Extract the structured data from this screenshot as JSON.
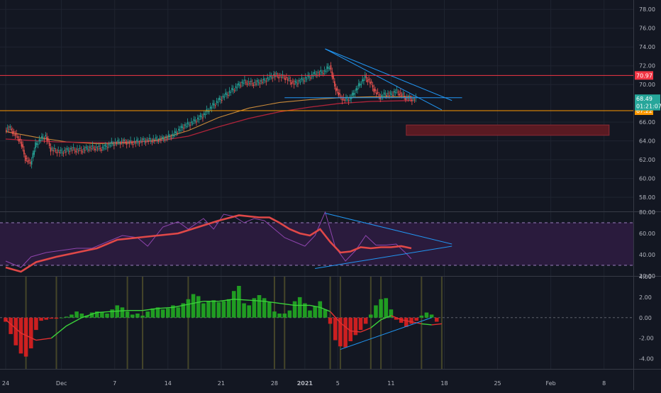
{
  "theme": {
    "background": "#131722",
    "grid": "#1f2430",
    "axis_text": "#b2b5be",
    "up": "#26a69a",
    "down": "#ef5350",
    "trendline": "#2196f3",
    "resistance": "#f23645",
    "support": "#ff9800",
    "rsi_line": "#e04848",
    "rsi_raw": "#8e44ad",
    "rsi_band": "#2a1b3d",
    "macd_up": "#22ab22",
    "macd_down": "#e02020",
    "zone": "#5a1a22"
  },
  "chart_data": [
    {
      "type": "line",
      "panel": "price",
      "ylim": [
        56.5,
        79
      ],
      "y_ticks": [
        "78.00",
        "76.00",
        "74.00",
        "72.00",
        "70.00",
        "66.00",
        "64.00",
        "62.00",
        "60.00",
        "58.00"
      ],
      "horizontal_levels": [
        {
          "value": 70.97,
          "label": "70.97",
          "color": "#f23645"
        },
        {
          "value": 67.22,
          "label": "67.22",
          "color": "#ff9800"
        }
      ],
      "price_badges": [
        {
          "value": 68.49,
          "label": "68.49",
          "color": "#26a69a"
        },
        {
          "value": 67.7,
          "label": "01:21:07",
          "color": "#26a69a"
        }
      ],
      "zone": {
        "from_x": 79,
        "to_x": 119,
        "y_low": 64.6,
        "y_high": 65.7
      },
      "series": [
        {
          "values": [
            [
              0,
              65.3
            ],
            [
              2,
              64.0
            ],
            [
              3,
              62.1
            ],
            [
              4,
              61.6
            ],
            [
              5,
              63.6
            ],
            [
              6,
              64.2
            ],
            [
              7,
              64.5
            ],
            [
              8,
              63.1
            ],
            [
              10,
              62.8
            ],
            [
              12,
              63.1
            ],
            [
              14,
              63.0
            ],
            [
              16,
              63.3
            ],
            [
              18,
              63.2
            ],
            [
              20,
              63.7
            ],
            [
              22,
              63.9
            ],
            [
              24,
              63.8
            ],
            [
              26,
              64.0
            ],
            [
              28,
              64.1
            ],
            [
              30,
              64.2
            ],
            [
              32,
              64.6
            ],
            [
              34,
              65.5
            ],
            [
              36,
              66.0
            ],
            [
              38,
              66.7
            ],
            [
              40,
              67.8
            ],
            [
              42,
              68.7
            ],
            [
              44,
              69.5
            ],
            [
              46,
              70.3
            ],
            [
              48,
              70.1
            ],
            [
              50,
              70.4
            ],
            [
              52,
              71.0
            ],
            [
              54,
              70.8
            ],
            [
              56,
              70.1
            ],
            [
              58,
              70.6
            ],
            [
              60,
              71.1
            ],
            [
              62,
              71.4
            ],
            [
              63,
              72.0
            ],
            [
              64,
              69.8
            ],
            [
              65,
              68.7
            ],
            [
              66,
              68.4
            ],
            [
              67,
              68.5
            ],
            [
              68,
              69.3
            ],
            [
              69,
              70.1
            ],
            [
              70,
              70.8
            ],
            [
              71,
              70.2
            ],
            [
              72,
              69.2
            ],
            [
              73,
              68.7
            ],
            [
              74,
              69.0
            ],
            [
              75,
              68.9
            ],
            [
              76,
              69.3
            ],
            [
              77,
              69.0
            ],
            [
              78,
              68.6
            ],
            [
              79,
              68.5
            ],
            [
              80,
              68.4
            ]
          ]
        },
        {
          "values": [
            [
              0,
              65.0
            ],
            [
              6,
              64.4
            ],
            [
              12,
              63.9
            ],
            [
              18,
              63.7
            ],
            [
              24,
              63.8
            ],
            [
              30,
              64.1
            ],
            [
              36,
              65.1
            ],
            [
              42,
              66.5
            ],
            [
              48,
              67.5
            ],
            [
              54,
              68.1
            ],
            [
              60,
              68.4
            ],
            [
              66,
              68.6
            ],
            [
              72,
              68.7
            ],
            [
              80,
              68.7
            ]
          ]
        },
        {
          "values": [
            [
              0,
              64.2
            ],
            [
              10,
              63.9
            ],
            [
              20,
              63.8
            ],
            [
              30,
              64.0
            ],
            [
              36,
              64.5
            ],
            [
              42,
              65.5
            ],
            [
              48,
              66.4
            ],
            [
              54,
              67.1
            ],
            [
              60,
              67.6
            ],
            [
              66,
              68.0
            ],
            [
              72,
              68.2
            ],
            [
              80,
              68.3
            ]
          ]
        }
      ],
      "trendlines": [
        {
          "from": [
            63,
            73.8
          ],
          "to": [
            88,
            68.3
          ]
        },
        {
          "from": [
            63,
            73.8
          ],
          "to": [
            86,
            67.3
          ]
        },
        {
          "from": [
            55,
            68.6
          ],
          "to": [
            90,
            68.6
          ]
        }
      ]
    },
    {
      "type": "line",
      "panel": "rsi",
      "ylim": [
        20,
        80
      ],
      "y_ticks": [
        "80.00",
        "60.00",
        "40.00",
        "20.00"
      ],
      "band": [
        30,
        70
      ],
      "series": [
        {
          "values": [
            [
              0,
              28
            ],
            [
              3,
              24
            ],
            [
              6,
              33
            ],
            [
              10,
              38
            ],
            [
              14,
              42
            ],
            [
              18,
              46
            ],
            [
              22,
              54
            ],
            [
              26,
              56
            ],
            [
              30,
              58
            ],
            [
              34,
              60
            ],
            [
              38,
              66
            ],
            [
              42,
              72
            ],
            [
              46,
              77
            ],
            [
              48,
              76
            ],
            [
              50,
              75
            ],
            [
              52,
              75
            ],
            [
              54,
              70
            ],
            [
              56,
              64
            ],
            [
              58,
              60
            ],
            [
              60,
              58
            ],
            [
              62,
              64
            ],
            [
              64,
              52
            ],
            [
              66,
              42
            ],
            [
              68,
              43
            ],
            [
              70,
              47
            ],
            [
              72,
              46
            ],
            [
              74,
              47
            ],
            [
              76,
              47
            ],
            [
              78,
              48
            ],
            [
              80,
              46
            ]
          ]
        },
        {
          "values": [
            [
              0,
              34
            ],
            [
              3,
              28
            ],
            [
              5,
              38
            ],
            [
              8,
              42
            ],
            [
              11,
              44
            ],
            [
              14,
              46
            ],
            [
              17,
              46
            ],
            [
              20,
              52
            ],
            [
              23,
              58
            ],
            [
              26,
              56
            ],
            [
              28,
              48
            ],
            [
              31,
              66
            ],
            [
              34,
              71
            ],
            [
              36,
              64
            ],
            [
              39,
              74
            ],
            [
              41,
              64
            ],
            [
              43,
              78
            ],
            [
              45,
              76
            ],
            [
              47,
              70
            ],
            [
              49,
              74
            ],
            [
              51,
              72
            ],
            [
              53,
              64
            ],
            [
              55,
              56
            ],
            [
              57,
              52
            ],
            [
              59,
              48
            ],
            [
              61,
              58
            ],
            [
              63,
              80
            ],
            [
              65,
              47
            ],
            [
              67,
              34
            ],
            [
              69,
              44
            ],
            [
              71,
              58
            ],
            [
              73,
              49
            ],
            [
              75,
              49
            ],
            [
              77,
              50
            ],
            [
              79,
              41
            ],
            [
              80,
              36
            ]
          ]
        }
      ],
      "trendlines": [
        {
          "from": [
            63,
            79
          ],
          "to": [
            88,
            50
          ]
        },
        {
          "from": [
            61,
            27
          ],
          "to": [
            88,
            48
          ]
        }
      ]
    },
    {
      "type": "bar",
      "panel": "macd",
      "ylim": [
        -5,
        4
      ],
      "y_ticks": [
        "4.00",
        "2.00",
        "0.00",
        "-2.00",
        "-4.00"
      ],
      "histogram": [
        -0.4,
        -1.6,
        -2.7,
        -3.5,
        -3.8,
        -3.0,
        -1.2,
        -0.3,
        -0.2,
        -0.1,
        -0.1,
        0.0,
        0.1,
        0.3,
        0.6,
        0.4,
        0.2,
        0.5,
        0.6,
        0.5,
        0.4,
        0.8,
        1.2,
        1.0,
        0.6,
        0.3,
        0.4,
        0.2,
        0.6,
        0.9,
        1.0,
        0.8,
        0.9,
        1.2,
        1.0,
        1.4,
        1.8,
        2.3,
        2.1,
        1.4,
        1.6,
        1.7,
        1.5,
        1.6,
        1.8,
        2.6,
        3.1,
        1.4,
        1.2,
        1.9,
        2.2,
        1.9,
        1.5,
        0.6,
        0.4,
        0.4,
        0.7,
        1.6,
        2.0,
        1.4,
        0.7,
        1.1,
        1.6,
        0.8,
        -0.6,
        -2.2,
        -2.8,
        -2.9,
        -2.3,
        -1.7,
        -1.2,
        -0.6,
        0.3,
        1.2,
        1.8,
        1.9,
        0.8,
        -0.2,
        -0.5,
        -0.9,
        -0.6,
        -0.3,
        0.2,
        0.5,
        0.3,
        -0.4
      ],
      "signal": [
        [
          0,
          -0.2
        ],
        [
          3,
          -1.5
        ],
        [
          6,
          -2.2
        ],
        [
          9,
          -2.0
        ],
        [
          12,
          -0.8
        ],
        [
          15,
          0.0
        ],
        [
          18,
          0.5
        ],
        [
          21,
          0.6
        ],
        [
          24,
          0.7
        ],
        [
          27,
          0.7
        ],
        [
          30,
          0.9
        ],
        [
          33,
          1.0
        ],
        [
          36,
          1.3
        ],
        [
          39,
          1.6
        ],
        [
          42,
          1.6
        ],
        [
          45,
          1.8
        ],
        [
          48,
          1.7
        ],
        [
          51,
          1.6
        ],
        [
          54,
          1.4
        ],
        [
          57,
          1.2
        ],
        [
          60,
          1.2
        ],
        [
          62,
          1.0
        ],
        [
          64,
          0.6
        ],
        [
          66,
          -0.5
        ],
        [
          68,
          -1.3
        ],
        [
          70,
          -1.4
        ],
        [
          72,
          -1.0
        ],
        [
          74,
          -0.2
        ],
        [
          76,
          0.2
        ],
        [
          78,
          -0.2
        ],
        [
          80,
          -0.4
        ],
        [
          82,
          -0.6
        ],
        [
          84,
          -0.7
        ],
        [
          86,
          -0.6
        ]
      ],
      "trendlines": [
        {
          "from": [
            66,
            -3.1
          ],
          "to": [
            84,
            0.0
          ]
        }
      ],
      "markers": [
        4,
        10,
        24,
        27,
        36,
        53,
        55,
        64,
        66,
        72,
        74,
        82,
        86
      ]
    }
  ],
  "x_axis": {
    "ticks": [
      {
        "x": 0,
        "label": "24"
      },
      {
        "x": 11,
        "label": "Dec"
      },
      {
        "x": 21.5,
        "label": "7"
      },
      {
        "x": 32,
        "label": "14"
      },
      {
        "x": 42.5,
        "label": "21"
      },
      {
        "x": 53,
        "label": "28"
      },
      {
        "x": 59,
        "label": "2021"
      },
      {
        "x": 65.5,
        "label": "5"
      },
      {
        "x": 76,
        "label": "11"
      },
      {
        "x": 86.5,
        "label": "18"
      },
      {
        "x": 97,
        "label": "25"
      },
      {
        "x": 107.5,
        "label": "Feb"
      },
      {
        "x": 118,
        "label": "8"
      }
    ]
  }
}
